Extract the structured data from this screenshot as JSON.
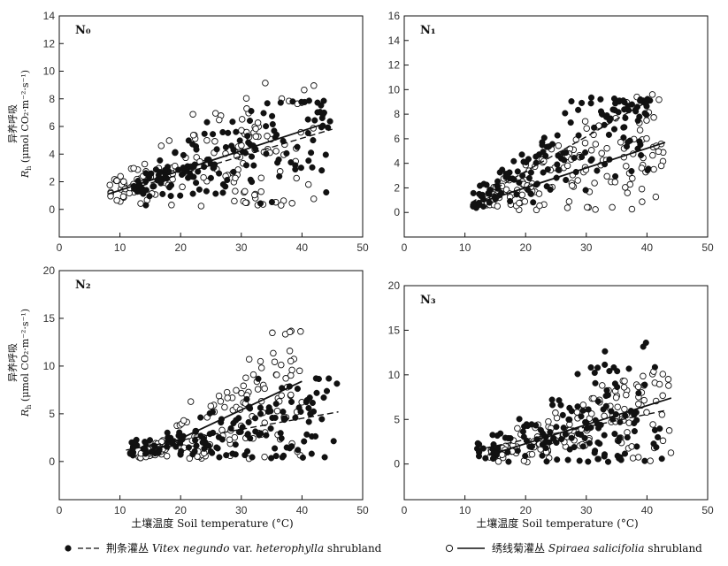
{
  "legend": {
    "series1": {
      "label_cn": "荆条灌丛",
      "label_sci": "Vitex negundo",
      "label_mid": "var.",
      "label_sci2": "heterophylla",
      "label_end": "shrubland"
    },
    "series2": {
      "label_cn": "绣线菊灌丛",
      "label_sci": "Spiraea salicifolia",
      "label_end": "shrubland"
    }
  },
  "y_label": {
    "cn": "异养呼吸",
    "en_prefix": "R",
    "en_sub": "h",
    "en_unit": "(μmol CO₂·m⁻²·s⁻¹)"
  },
  "x_label": {
    "cn": "土壤温度",
    "en": "Soil temperature (°C)"
  },
  "chart_data": [
    {
      "type": "scatter",
      "panel": "N₀",
      "xlim": [
        0,
        50
      ],
      "ylim": [
        -2,
        14
      ],
      "xticks": [
        0,
        10,
        20,
        30,
        40,
        50
      ],
      "yticks": [
        0,
        2,
        4,
        6,
        8,
        10,
        12,
        14
      ],
      "series": [
        {
          "marker": "filled",
          "line": "dashed",
          "fit": [
            [
              12,
              1.5
            ],
            [
              45,
              5.8
            ]
          ],
          "cloud": {
            "xmin": 12,
            "xmax": 45,
            "ymin": 0.2,
            "ymax": 8.2,
            "n": 150,
            "seed": 11
          }
        },
        {
          "marker": "open",
          "line": "solid",
          "fit": [
            [
              8,
              1.1
            ],
            [
              43,
              6.1
            ]
          ],
          "cloud": {
            "xmin": 8,
            "xmax": 42,
            "ymin": 0.2,
            "ymax": 9.8,
            "n": 150,
            "seed": 23
          }
        }
      ]
    },
    {
      "type": "scatter",
      "panel": "N₁",
      "xlim": [
        0,
        50
      ],
      "ylim": [
        -2,
        16
      ],
      "xticks": [
        0,
        10,
        20,
        30,
        40,
        50
      ],
      "yticks": [
        0,
        2,
        4,
        6,
        8,
        10,
        12,
        14,
        16
      ],
      "series": [
        {
          "marker": "filled",
          "line": "dashed",
          "fit": [
            [
              11,
              0.8
            ],
            [
              40,
              9.0
            ]
          ],
          "cloud": {
            "xmin": 11,
            "xmax": 41,
            "ymin": 0.2,
            "ymax": 9.4,
            "n": 150,
            "seed": 37
          }
        },
        {
          "marker": "open",
          "line": "solid",
          "fit": [
            [
              13,
              0.9
            ],
            [
              43,
              5.7
            ]
          ],
          "cloud": {
            "xmin": 13,
            "xmax": 43,
            "ymin": 0.2,
            "ymax": 9.8,
            "n": 150,
            "seed": 41
          }
        }
      ]
    },
    {
      "type": "scatter",
      "panel": "N₂",
      "xlim": [
        0,
        50
      ],
      "ylim": [
        -4,
        20
      ],
      "xticks": [
        0,
        10,
        20,
        30,
        40,
        50
      ],
      "yticks": [
        0,
        5,
        10,
        15,
        20
      ],
      "series": [
        {
          "marker": "filled",
          "line": "dashed",
          "fit": [
            [
              11,
              1.2
            ],
            [
              46,
              5.2
            ]
          ],
          "cloud": {
            "xmin": 11,
            "xmax": 46,
            "ymin": 0.3,
            "ymax": 8.8,
            "n": 150,
            "seed": 53
          }
        },
        {
          "marker": "open",
          "line": "solid",
          "fit": [
            [
              14,
              0.6
            ],
            [
              40,
              8.4
            ]
          ],
          "cloud": {
            "xmin": 13,
            "xmax": 40,
            "ymin": 0.3,
            "ymax": 13.8,
            "n": 150,
            "seed": 67
          }
        }
      ]
    },
    {
      "type": "scatter",
      "panel": "N₃",
      "xlim": [
        0,
        50
      ],
      "ylim": [
        -4,
        20
      ],
      "xticks": [
        0,
        10,
        20,
        30,
        40,
        50
      ],
      "yticks": [
        0,
        5,
        10,
        15,
        20
      ],
      "series": [
        {
          "marker": "filled",
          "line": "dashed",
          "fit": [
            [
              12,
              1.6
            ],
            [
              43,
              6.0
            ]
          ],
          "cloud": {
            "xmin": 12,
            "xmax": 43,
            "ymin": 0.2,
            "ymax": 14.6,
            "n": 150,
            "seed": 71
          }
        },
        {
          "marker": "open",
          "line": "solid",
          "fit": [
            [
              14,
              1.0
            ],
            [
              44,
              7.4
            ]
          ],
          "cloud": {
            "xmin": 14,
            "xmax": 44,
            "ymin": 0.2,
            "ymax": 10.5,
            "n": 150,
            "seed": 83
          }
        }
      ]
    }
  ]
}
